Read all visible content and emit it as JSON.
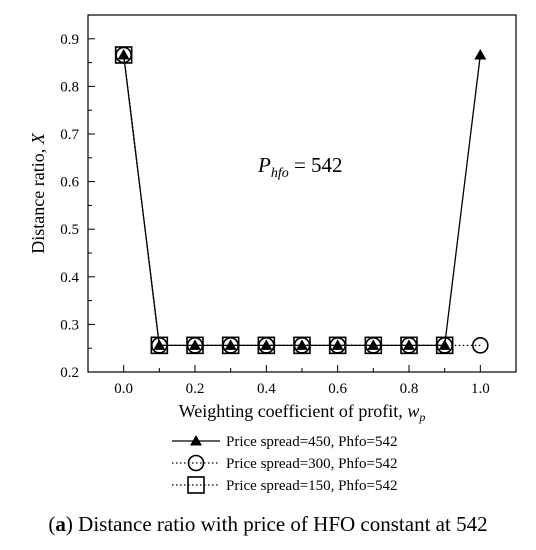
{
  "chart_data": {
    "type": "line",
    "title": "",
    "xlabel": "Weighting coefficient of profit, ",
    "xlabel_var": "w",
    "xlabel_sub": "p",
    "ylabel": "Distance ratio, ",
    "ylabel_var": "X",
    "xlim": [
      -0.1,
      1.1
    ],
    "ylim": [
      0.2,
      0.95
    ],
    "x_ticks": [
      0.0,
      0.2,
      0.4,
      0.6,
      0.8,
      1.0
    ],
    "x_tick_labels": [
      "0.0",
      "0.2",
      "0.4",
      "0.6",
      "0.8",
      "1.0"
    ],
    "y_ticks": [
      0.2,
      0.3,
      0.4,
      0.5,
      0.6,
      0.7,
      0.8,
      0.9
    ],
    "y_tick_labels": [
      "0.2",
      "0.3",
      "0.4",
      "0.5",
      "0.6",
      "0.7",
      "0.8",
      "0.9"
    ],
    "grid": false,
    "legend_position": "bottom",
    "annotation": {
      "var": "P",
      "sub": "hfo",
      "text": " = 542"
    },
    "series": [
      {
        "name": "Price spread=450, Phfo=542",
        "marker": "triangle-filled",
        "line": "solid",
        "color": "#000000",
        "x": [
          0.0,
          0.1,
          0.2,
          0.3,
          0.4,
          0.5,
          0.6,
          0.7,
          0.8,
          0.9,
          1.0
        ],
        "y": [
          0.866,
          0.256,
          0.256,
          0.256,
          0.256,
          0.256,
          0.256,
          0.256,
          0.256,
          0.256,
          0.866
        ]
      },
      {
        "name": "Price spread=300, Phfo=542",
        "marker": "circle-open",
        "line": "dotted",
        "color": "#000000",
        "x": [
          0.0,
          0.1,
          0.2,
          0.3,
          0.4,
          0.5,
          0.6,
          0.7,
          0.8,
          0.9,
          1.0
        ],
        "y": [
          0.866,
          0.256,
          0.256,
          0.256,
          0.256,
          0.256,
          0.256,
          0.256,
          0.256,
          0.256,
          0.256
        ]
      },
      {
        "name": "Price spread=150, Phfo=542",
        "marker": "square-open",
        "line": "dotted",
        "color": "#000000",
        "x": [
          0.0,
          0.1,
          0.2,
          0.3,
          0.4,
          0.5,
          0.6,
          0.7,
          0.8,
          0.9
        ],
        "y": [
          0.866,
          0.256,
          0.256,
          0.256,
          0.256,
          0.256,
          0.256,
          0.256,
          0.256,
          0.256
        ]
      }
    ]
  },
  "caption": {
    "label": "a",
    "text": " Distance ratio with price of HFO constant at 542"
  }
}
